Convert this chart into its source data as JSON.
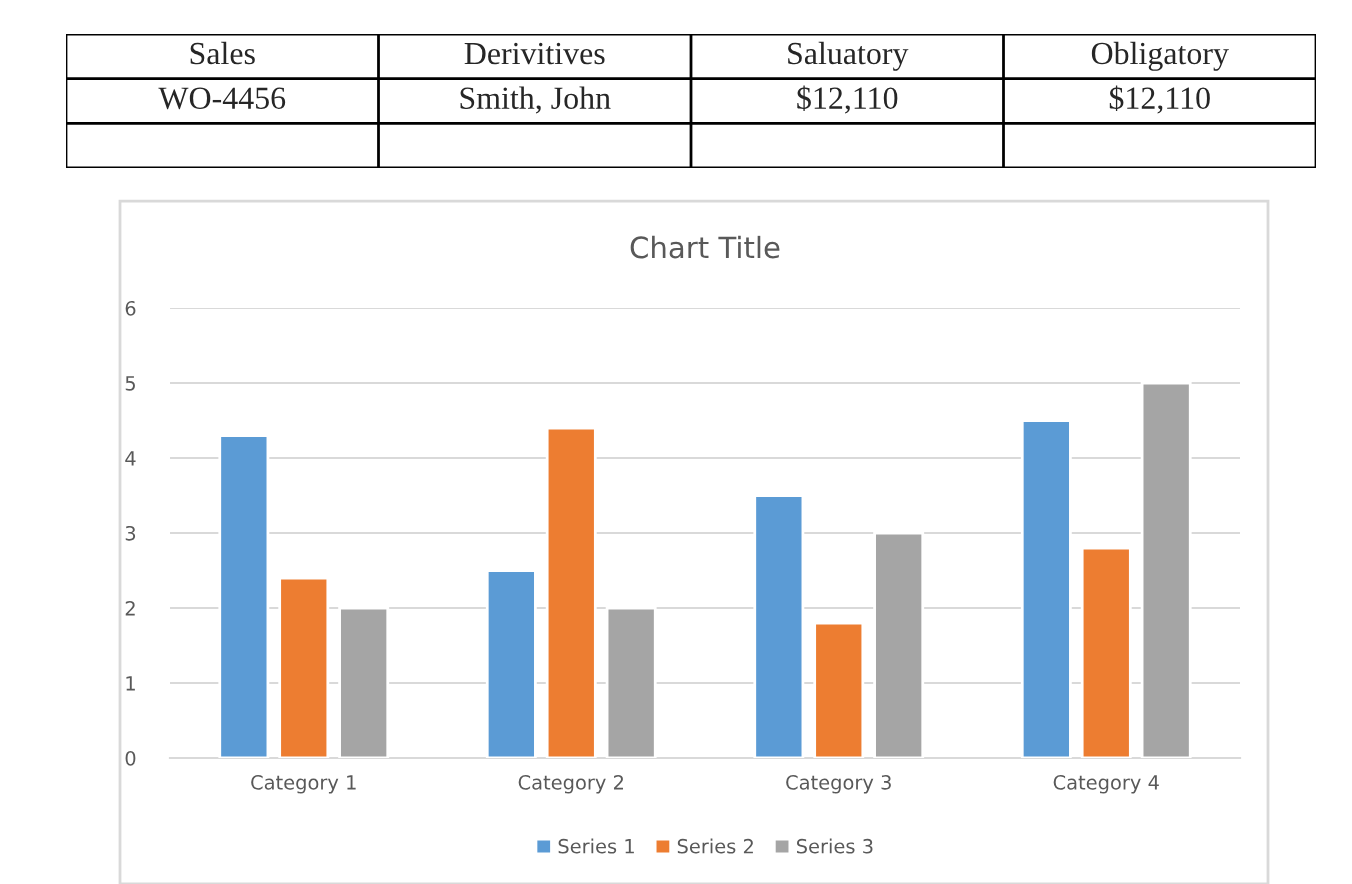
{
  "chart_data": [
    {
      "type": "other",
      "categories": [
        "Sales",
        "Derivitives",
        "Saluatory",
        "Obligatory"
      ],
      "annotations": [
        "WO-4456",
        "Smith, John",
        "$12,110",
        "$12,110"
      ]
    },
    {
      "type": "bar",
      "title": "Chart Title",
      "categories": [
        "Category 1",
        "Category 2",
        "Category 3",
        "Category 4"
      ],
      "series": [
        {
          "name": "Series 1",
          "color": "#5b9bd5",
          "values": [
            4.3,
            2.5,
            3.5,
            4.5
          ]
        },
        {
          "name": "Series 2",
          "color": "#ed7d31",
          "values": [
            2.4,
            4.4,
            1.8,
            2.8
          ]
        },
        {
          "name": "Series 3",
          "color": "#a5a5a5",
          "values": [
            2,
            2,
            3,
            5
          ]
        }
      ],
      "ylim": [
        0,
        6
      ],
      "yticks": [
        0,
        1,
        2,
        3,
        4,
        5,
        6
      ],
      "grid": "y",
      "legend": "bottom"
    }
  ]
}
